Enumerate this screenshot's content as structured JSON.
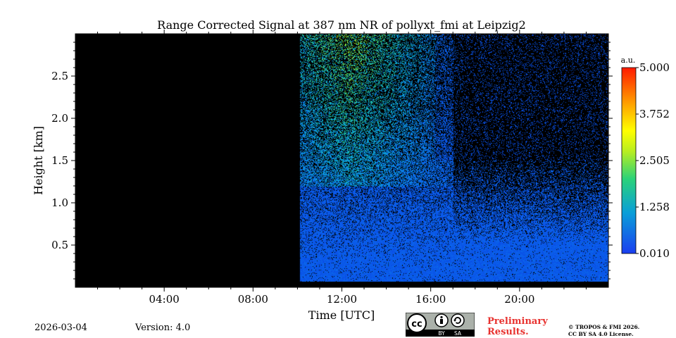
{
  "chart_data": {
    "type": "heatmap",
    "title": "Range Corrected Signal at 387 nm NR of pollyxt_fmi at Leipzig2",
    "xlabel": "Time [UTC]",
    "ylabel": "Height [km]",
    "xlim_hours": [
      0,
      24
    ],
    "ylim_km": [
      0,
      3.0
    ],
    "x_ticks": [
      {
        "hour": 4,
        "label": "04:00"
      },
      {
        "hour": 8,
        "label": "08:00"
      },
      {
        "hour": 12,
        "label": "12:00"
      },
      {
        "hour": 16,
        "label": "16:00"
      },
      {
        "hour": 20,
        "label": "20:00"
      }
    ],
    "y_ticks": [
      {
        "km": 0.5,
        "label": "0.5"
      },
      {
        "km": 1.0,
        "label": "1.0"
      },
      {
        "km": 1.5,
        "label": "1.5"
      },
      {
        "km": 2.0,
        "label": "2.0"
      },
      {
        "km": 2.5,
        "label": "2.5"
      }
    ],
    "colorbar": {
      "unit": "a.u.",
      "min": 0.01,
      "max": 5.0,
      "ticks": [
        "0.010",
        "1.258",
        "2.505",
        "3.752",
        "5.000"
      ]
    },
    "no_data_until_hour": 10.1,
    "colors": {
      "no_data": "#000000",
      "low_signal": "#0a4fd8",
      "high_signal": "#ff1a00"
    }
  },
  "footer": {
    "date": "2026-03-04",
    "version": "Version: 4.0",
    "preliminary_line1": "Preliminary",
    "preliminary_line2": "Results.",
    "copyright_line1": "© TROPOS & FMI 2026.",
    "copyright_line2": "CC BY SA 4.0 License.",
    "license_badge": {
      "cc": "cc",
      "by": "BY",
      "sa": "SA"
    }
  }
}
